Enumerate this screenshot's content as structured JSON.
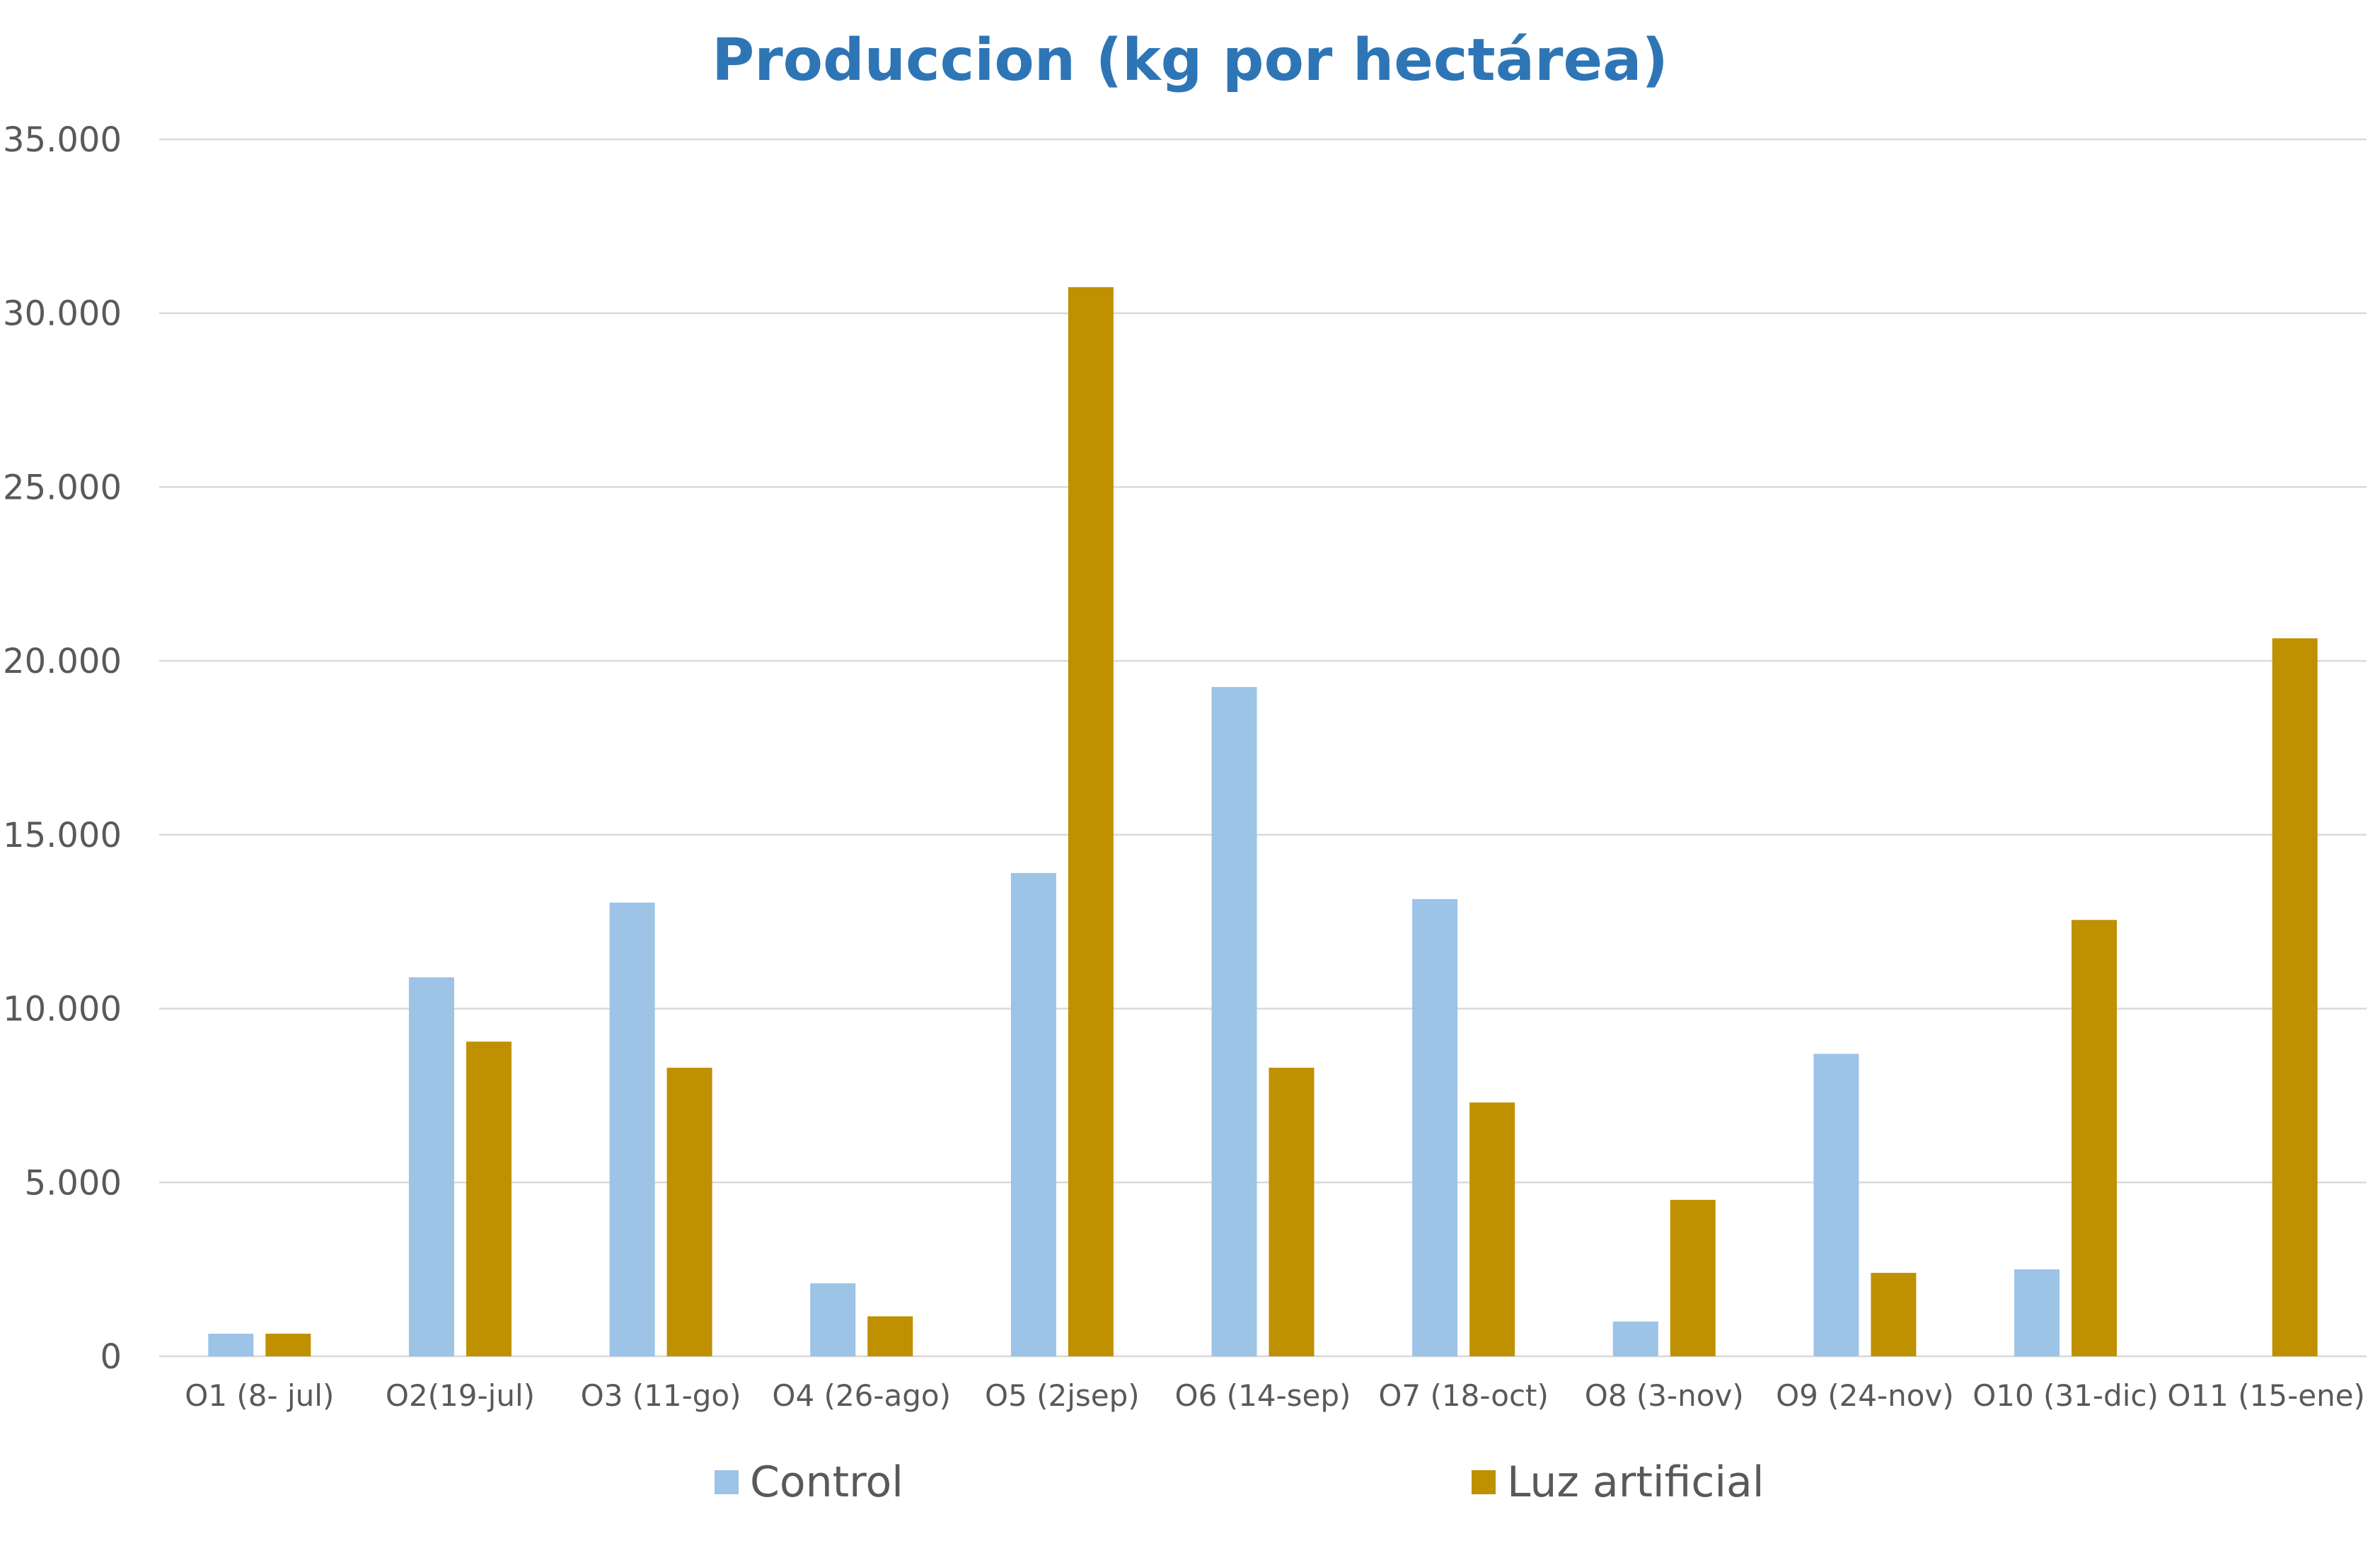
{
  "chart_data": {
    "type": "bar",
    "title": "Produccion (kg por hectárea)",
    "xlabel": "",
    "ylabel": "",
    "ylim": [
      0,
      35000
    ],
    "yticks": [
      0,
      5000,
      10000,
      15000,
      20000,
      25000,
      30000,
      35000
    ],
    "ytick_labels": [
      "0",
      "5.000",
      "10.000",
      "15.000",
      "20.000",
      "25.000",
      "30.000",
      "35.000"
    ],
    "grid": true,
    "legend_position": "bottom",
    "categories": [
      "O1 (8- jul)",
      "O2(19-jul)",
      "O3 (11-go)",
      "O4 (26-ago)",
      "O5 (2jsep)",
      "O6 (14-sep)",
      "O7 (18-oct)",
      "O8 (3-nov)",
      "O9 (24-nov)",
      "O10 (31-dic)",
      "O11 (15-ene)"
    ],
    "series": [
      {
        "name": "Control",
        "color": "#9DC3E6",
        "values": [
          650,
          10900,
          13050,
          2100,
          13900,
          19250,
          13150,
          1000,
          8700,
          2500,
          0
        ]
      },
      {
        "name": "Luz artificial",
        "color": "#BF9000",
        "values": [
          650,
          9050,
          8300,
          1150,
          30750,
          8300,
          7300,
          4500,
          2400,
          12550,
          20650
        ]
      }
    ],
    "colors": {
      "title": "#2E75B6",
      "gridline": "#D9D9D9",
      "axis_text": "#595959"
    }
  }
}
